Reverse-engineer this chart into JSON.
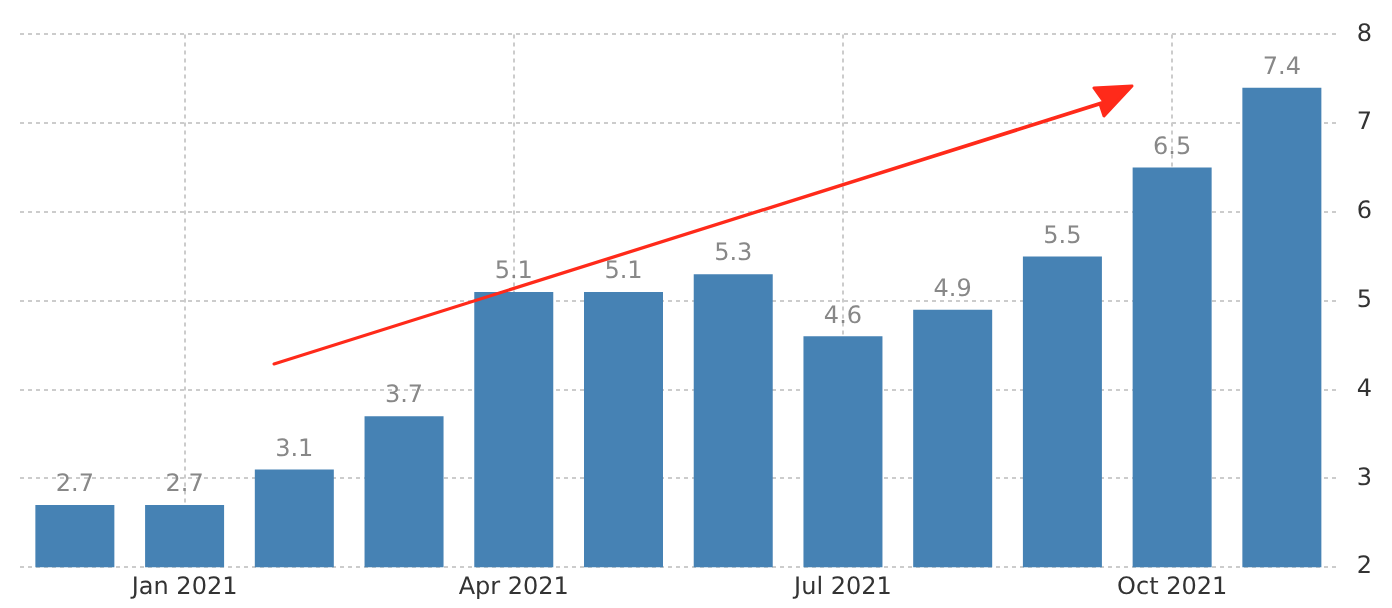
{
  "chart_data": {
    "type": "bar",
    "categories": [
      null,
      "Jan 2021",
      null,
      null,
      "Apr 2021",
      null,
      null,
      "Jul 2021",
      null,
      null,
      "Oct 2021",
      null
    ],
    "values": [
      2.7,
      2.7,
      3.1,
      3.7,
      5.1,
      5.1,
      5.3,
      4.6,
      4.9,
      5.5,
      6.5,
      7.4
    ],
    "color": "#4682b4",
    "ylim": [
      2,
      8
    ],
    "yticks": [
      2,
      3,
      4,
      5,
      6,
      7,
      8
    ],
    "grid": true,
    "data_labels": true,
    "legend": false
  }
}
